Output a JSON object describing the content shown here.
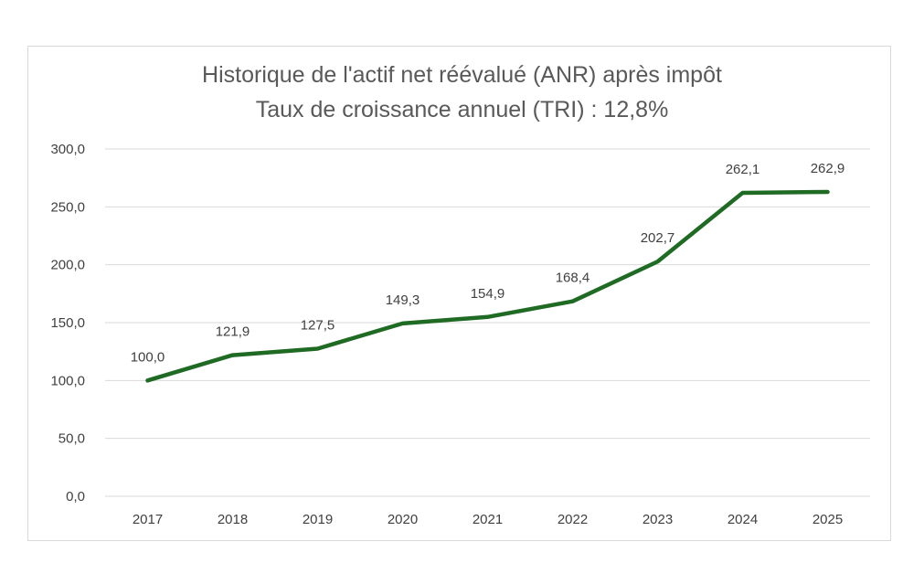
{
  "chart_data": {
    "type": "line",
    "title": "Historique de l'actif net réévalué (ANR) après impôt",
    "subtitle": "Taux de croissance annuel (TRI) : 12,8%",
    "categories": [
      "2017",
      "2018",
      "2019",
      "2020",
      "2021",
      "2022",
      "2023",
      "2024",
      "2025"
    ],
    "values": [
      100.0,
      121.9,
      127.5,
      149.3,
      154.9,
      168.4,
      202.7,
      262.1,
      262.9
    ],
    "data_labels": [
      "100,0",
      "121,9",
      "127,5",
      "149,3",
      "154,9",
      "168,4",
      "202,7",
      "262,1",
      "262,9"
    ],
    "yticks": [
      "0,0",
      "50,0",
      "100,0",
      "150,0",
      "200,0",
      "250,0",
      "300,0"
    ],
    "ylim": [
      0,
      300
    ],
    "grid": true,
    "legend": "none",
    "line_color": "#1f6b24",
    "xlabel": "",
    "ylabel": ""
  }
}
